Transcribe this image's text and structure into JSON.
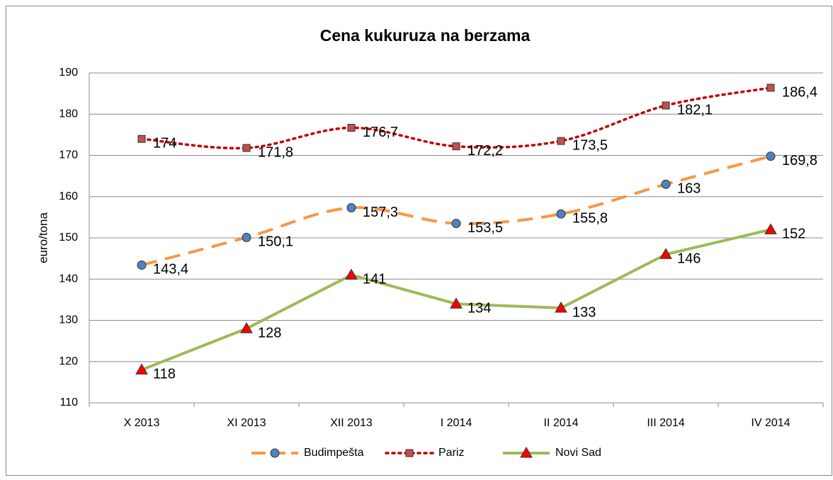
{
  "chart_data": {
    "type": "line",
    "title": "Cena kukuruza na berzama",
    "ylabel": "euro/tona",
    "categories": [
      "X 2013",
      "XI 2013",
      "XII 2013",
      "I 2014",
      "II 2014",
      "III 2014",
      "IV 2014"
    ],
    "ylim": [
      110,
      190
    ],
    "yticks": [
      110,
      120,
      130,
      140,
      150,
      160,
      170,
      180,
      190
    ],
    "grid": true,
    "legend": "bottom",
    "series": [
      {
        "name": "Budimpešta",
        "color": "#f79646",
        "marker": "circle",
        "marker_color": "#4f81bd",
        "dash": "dashed",
        "smooth": true,
        "values": [
          143.4,
          150.1,
          157.3,
          153.5,
          155.8,
          163,
          169.8
        ],
        "value_labels": [
          "143,4",
          "150,1",
          "157,3",
          "153,5",
          "155,8",
          "163",
          "169,8"
        ]
      },
      {
        "name": "Pariz",
        "color": "#c00000",
        "marker": "square",
        "marker_color": "#c0504d",
        "dash": "dotted",
        "smooth": true,
        "values": [
          174,
          171.8,
          176.7,
          172.2,
          173.5,
          182.1,
          186.4
        ],
        "value_labels": [
          "174",
          "171,8",
          "176,7",
          "172,2",
          "173,5",
          "182,1",
          "186,4"
        ]
      },
      {
        "name": "Novi Sad",
        "color": "#9bbb59",
        "marker": "triangle",
        "marker_color": "#ff0000",
        "dash": "solid",
        "smooth": false,
        "values": [
          118,
          128,
          141,
          134,
          133,
          146,
          152
        ],
        "value_labels": [
          "118",
          "128",
          "141",
          "134",
          "133",
          "146",
          "152"
        ]
      }
    ]
  }
}
